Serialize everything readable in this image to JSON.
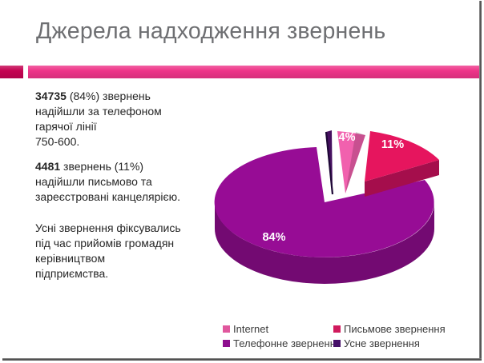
{
  "slide": {
    "title": "Джерела надходження звернень"
  },
  "accent": {
    "divider_dark": "#c50352",
    "divider_pink": "#ee3589"
  },
  "body_text": {
    "paragraphs": [
      {
        "lines": [
          [
            {
              "t": "34735",
              "b": true
            },
            {
              "t": " (84%) звернень"
            }
          ],
          [
            {
              "t": "надійшли за телефоном"
            }
          ],
          [
            {
              "t": "гарячої лінії"
            }
          ],
          [
            {
              "t": "750-600."
            }
          ]
        ]
      },
      {
        "lines": [
          [
            {
              "t": "4481",
              "b": true
            },
            {
              "t": " звернень (11%)"
            }
          ],
          [
            {
              "t": "надійшли письмово та"
            }
          ],
          [
            {
              "t": "зареєстровані канцелярією."
            }
          ]
        ]
      },
      {
        "lines": [
          [
            {
              "t": "Усні звернення фіксувались"
            }
          ],
          [
            {
              "t": "під час прийомів громадян"
            }
          ],
          [
            {
              "t": "керівництвом"
            }
          ],
          [
            {
              "t": "підприємства."
            }
          ]
        ]
      }
    ]
  },
  "chart_data": {
    "type": "pie",
    "style": "3d-exploded",
    "labels": [
      "Internet",
      "Письмове звернення",
      "Телефонне звернення",
      "Усне звернення"
    ],
    "values": [
      4,
      11,
      84,
      1
    ],
    "value_labels": [
      "4%",
      "11%",
      "84%",
      ""
    ],
    "colors": [
      "#f161ae",
      "#e6155e",
      "#970c95",
      "#461060"
    ],
    "side_colors": [
      "#c2458f",
      "#a50e4c",
      "#730a72",
      "#1e0736"
    ],
    "legend_position": "bottom"
  },
  "legend": {
    "items": [
      {
        "label": "Internet",
        "color": "#e0579d"
      },
      {
        "label": "Письмове звернення",
        "color": "#d01a5d"
      },
      {
        "label": "Телефонне звернення",
        "color": "#8e0f8f"
      },
      {
        "label": "Усне звернення",
        "color": "#461069"
      }
    ]
  }
}
